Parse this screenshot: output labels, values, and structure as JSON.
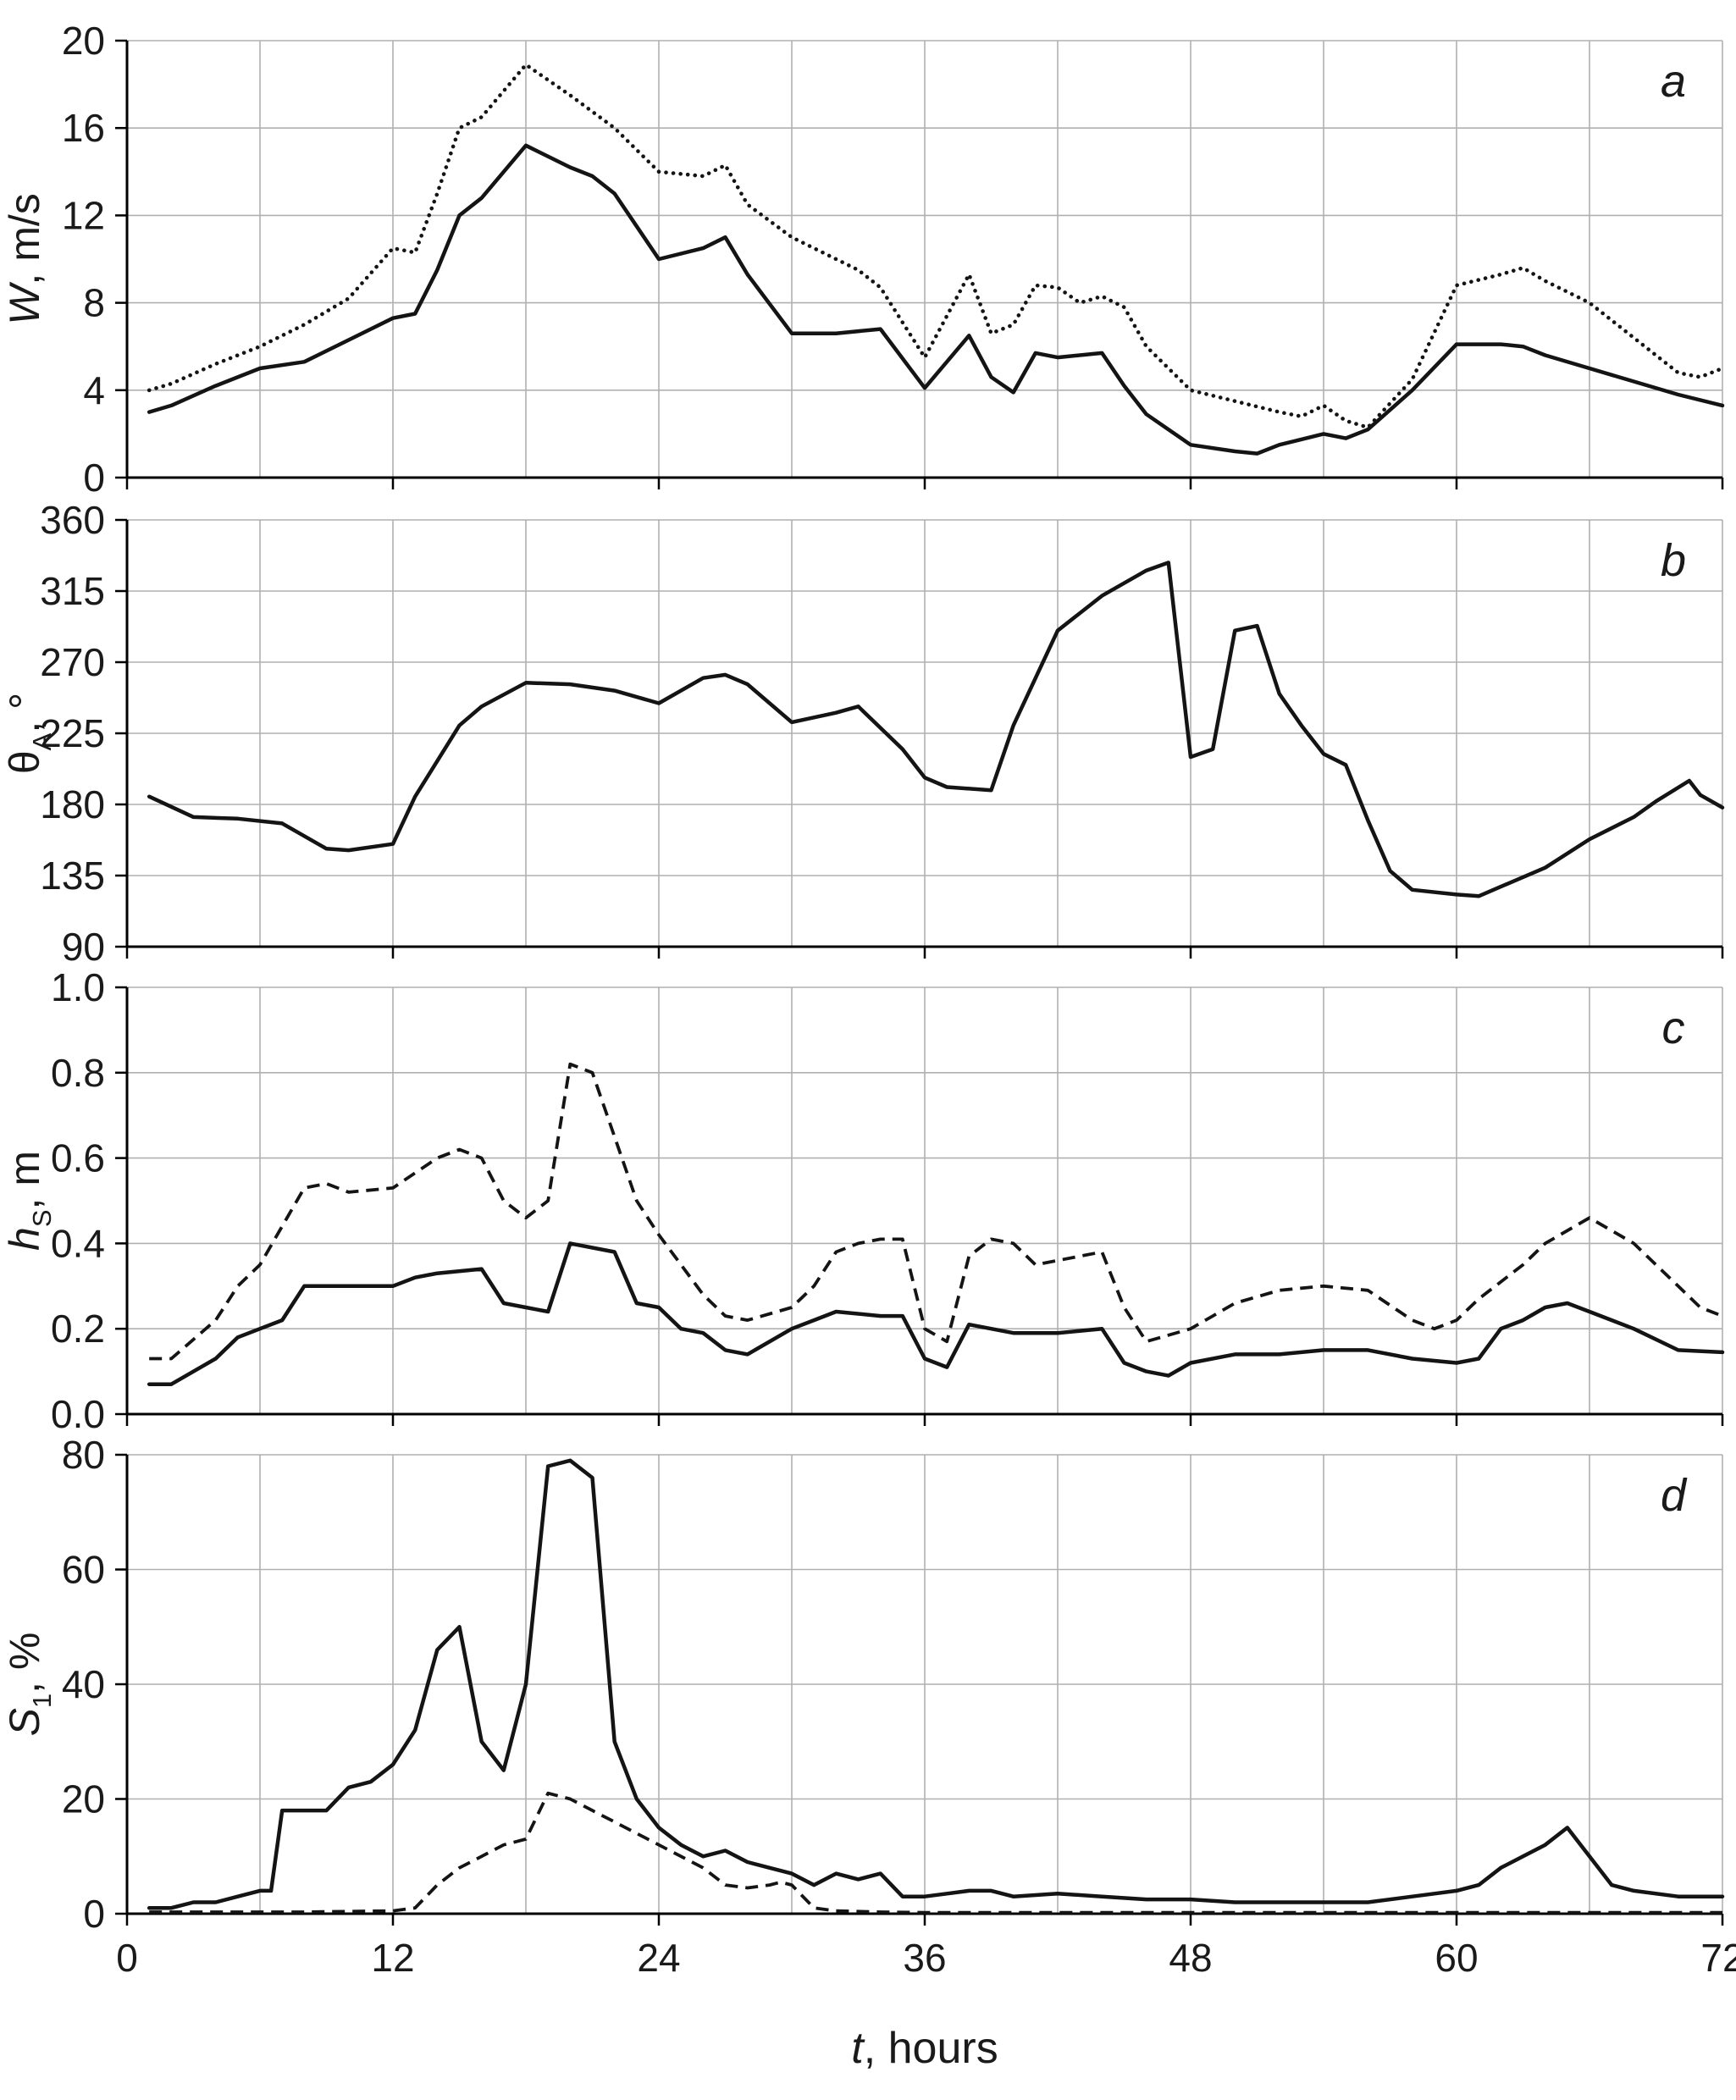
{
  "figure": {
    "background": "#ffffff",
    "line_color": "#141414",
    "grid_color": "#b0b0b0",
    "axis_color": "#000000",
    "text_color": "#1a1a1a"
  },
  "xaxis": {
    "min": 0,
    "max": 72,
    "grid_step": 6,
    "ticks": [
      {
        "v": 0,
        "label": "0"
      },
      {
        "v": 12,
        "label": "12"
      },
      {
        "v": 24,
        "label": "24"
      },
      {
        "v": 36,
        "label": "36"
      },
      {
        "v": 48,
        "label": "48"
      },
      {
        "v": 60,
        "label": "60"
      },
      {
        "v": 72,
        "label": "72"
      }
    ],
    "title_parts": [
      {
        "t": "t",
        "i": true
      },
      {
        "t": ", hours"
      }
    ]
  },
  "chart_data": [
    {
      "type": "line",
      "panel_label": "a",
      "ylabel_parts": [
        {
          "t": "W",
          "i": true
        },
        {
          "t": ", m/s"
        }
      ],
      "ylim": [
        0,
        20
      ],
      "yticks": [
        {
          "v": 0,
          "label": "0"
        },
        {
          "v": 4,
          "label": "4"
        },
        {
          "v": 8,
          "label": "8"
        },
        {
          "v": 12,
          "label": "12"
        },
        {
          "v": 16,
          "label": "16"
        },
        {
          "v": 20,
          "label": "20"
        }
      ],
      "series": [
        {
          "name": "wind-speed-solid",
          "style": "solid",
          "x": [
            1,
            2,
            4,
            6,
            8,
            10,
            12,
            13,
            14,
            15,
            16,
            18,
            20,
            21,
            22,
            24,
            26,
            27,
            28,
            30,
            32,
            34,
            36,
            38,
            39,
            40,
            41,
            42,
            44,
            45,
            46,
            48,
            50,
            51,
            52,
            54,
            55,
            56,
            58,
            60,
            62,
            63,
            64,
            66,
            68,
            70,
            72
          ],
          "y": [
            3.0,
            3.3,
            4.2,
            5.0,
            5.3,
            6.3,
            7.3,
            7.5,
            9.5,
            12.0,
            12.8,
            15.2,
            14.2,
            13.8,
            13.0,
            10.0,
            10.5,
            11.0,
            9.3,
            6.6,
            6.6,
            6.8,
            4.1,
            6.5,
            4.6,
            3.9,
            5.7,
            5.5,
            5.7,
            4.2,
            2.9,
            1.5,
            1.2,
            1.1,
            1.5,
            2.0,
            1.8,
            2.2,
            4.0,
            6.1,
            6.1,
            6.0,
            5.6,
            5.0,
            4.4,
            3.8,
            3.3
          ]
        },
        {
          "name": "wind-speed-dotted",
          "style": "dotted",
          "x": [
            1,
            2,
            4,
            6,
            8,
            10,
            12,
            13,
            14,
            15,
            16,
            18,
            20,
            22,
            23,
            24,
            26,
            27,
            28,
            30,
            32,
            33,
            34,
            36,
            38,
            39,
            40,
            41,
            42,
            43,
            44,
            45,
            46,
            48,
            50,
            52,
            53,
            54,
            55,
            56,
            58,
            60,
            62,
            63,
            64,
            66,
            68,
            70,
            71,
            72
          ],
          "y": [
            4.0,
            4.3,
            5.2,
            6.0,
            7.0,
            8.2,
            10.5,
            10.3,
            13.0,
            16.0,
            16.5,
            18.9,
            17.5,
            16.0,
            15.0,
            14.0,
            13.8,
            14.3,
            12.5,
            11.0,
            10.0,
            9.5,
            8.7,
            5.5,
            9.3,
            6.6,
            7.0,
            8.8,
            8.7,
            8.0,
            8.3,
            7.8,
            6.0,
            4.0,
            3.5,
            3.0,
            2.8,
            3.3,
            2.6,
            2.3,
            4.5,
            8.8,
            9.3,
            9.6,
            9.0,
            8.0,
            6.4,
            4.8,
            4.6,
            5.0
          ]
        }
      ]
    },
    {
      "type": "line",
      "panel_label": "b",
      "ylabel_parts": [
        {
          "t": "θ"
        },
        {
          "t": "A",
          "sub": true
        },
        {
          "t": ", °"
        }
      ],
      "ylim": [
        90,
        360
      ],
      "yticks": [
        {
          "v": 90,
          "label": "90"
        },
        {
          "v": 135,
          "label": "135"
        },
        {
          "v": 180,
          "label": "180"
        },
        {
          "v": 225,
          "label": "225"
        },
        {
          "v": 270,
          "label": "270"
        },
        {
          "v": 315,
          "label": "315"
        },
        {
          "v": 360,
          "label": "360"
        }
      ],
      "series": [
        {
          "name": "wind-direction-solid",
          "style": "solid",
          "x": [
            1,
            3,
            5,
            7,
            9,
            10,
            12,
            13,
            15,
            16,
            18,
            20,
            22,
            24,
            26,
            27,
            28,
            30,
            32,
            33,
            35,
            36,
            37,
            39,
            40,
            42,
            44,
            46,
            47,
            48,
            49,
            50,
            51,
            52,
            53,
            54,
            55,
            56,
            57,
            58,
            60,
            61,
            62,
            64,
            66,
            68,
            69,
            70.5,
            71,
            72
          ],
          "y": [
            185,
            172,
            171,
            168,
            152,
            151,
            155,
            185,
            230,
            242,
            257,
            256,
            252,
            244,
            260,
            262,
            256,
            232,
            238,
            242,
            215,
            197,
            191,
            189,
            230,
            290,
            312,
            328,
            333,
            210,
            215,
            290,
            293,
            250,
            230,
            212,
            205,
            170,
            138,
            126,
            123,
            122,
            128,
            140,
            158,
            172,
            182,
            195,
            186,
            178
          ]
        }
      ]
    },
    {
      "type": "line",
      "panel_label": "c",
      "ylabel_parts": [
        {
          "t": "h",
          "i": true
        },
        {
          "t": "S",
          "sub": true
        },
        {
          "t": ", m"
        }
      ],
      "ylim": [
        0,
        1.0
      ],
      "yticks": [
        {
          "v": 0,
          "label": "0.0"
        },
        {
          "v": 0.2,
          "label": "0.2"
        },
        {
          "v": 0.4,
          "label": "0.4"
        },
        {
          "v": 0.6,
          "label": "0.6"
        },
        {
          "v": 0.8,
          "label": "0.8"
        },
        {
          "v": 1.0,
          "label": "1.0"
        }
      ],
      "series": [
        {
          "name": "wave-height-solid",
          "style": "solid",
          "x": [
            1,
            2,
            4,
            5,
            6,
            7,
            8,
            10,
            12,
            13,
            14,
            16,
            17,
            18,
            19,
            20,
            22,
            23,
            24,
            25,
            26,
            27,
            28,
            30,
            31,
            32,
            34,
            35,
            36,
            37,
            38,
            40,
            42,
            44,
            45,
            46,
            47,
            48,
            50,
            52,
            54,
            56,
            58,
            60,
            61,
            62,
            63,
            64,
            65,
            66,
            68,
            70,
            72
          ],
          "y": [
            0.07,
            0.07,
            0.13,
            0.18,
            0.2,
            0.22,
            0.3,
            0.3,
            0.3,
            0.32,
            0.33,
            0.34,
            0.26,
            0.25,
            0.24,
            0.4,
            0.38,
            0.26,
            0.25,
            0.2,
            0.19,
            0.15,
            0.14,
            0.2,
            0.22,
            0.24,
            0.23,
            0.23,
            0.13,
            0.11,
            0.21,
            0.19,
            0.19,
            0.2,
            0.12,
            0.1,
            0.09,
            0.12,
            0.14,
            0.14,
            0.15,
            0.15,
            0.13,
            0.12,
            0.13,
            0.2,
            0.22,
            0.25,
            0.26,
            0.24,
            0.2,
            0.15,
            0.145
          ]
        },
        {
          "name": "wave-height-dashed",
          "style": "dashed",
          "x": [
            1,
            2,
            4,
            5,
            6,
            8,
            9,
            10,
            12,
            14,
            15,
            16,
            17,
            18,
            19,
            20,
            21,
            22,
            23,
            24,
            25,
            26,
            27,
            28,
            30,
            31,
            32,
            33,
            34,
            35,
            36,
            37,
            38,
            39,
            40,
            41,
            43,
            44,
            45,
            46,
            48,
            49,
            50,
            52,
            54,
            56,
            58,
            59,
            60,
            61,
            63,
            64,
            65,
            66,
            67,
            68,
            70,
            71,
            72
          ],
          "y": [
            0.13,
            0.13,
            0.22,
            0.3,
            0.35,
            0.53,
            0.54,
            0.52,
            0.53,
            0.6,
            0.62,
            0.6,
            0.5,
            0.46,
            0.5,
            0.82,
            0.8,
            0.65,
            0.5,
            0.42,
            0.35,
            0.28,
            0.23,
            0.22,
            0.25,
            0.3,
            0.38,
            0.4,
            0.41,
            0.41,
            0.2,
            0.17,
            0.37,
            0.41,
            0.4,
            0.35,
            0.37,
            0.38,
            0.25,
            0.17,
            0.2,
            0.23,
            0.26,
            0.29,
            0.3,
            0.29,
            0.22,
            0.2,
            0.22,
            0.27,
            0.35,
            0.4,
            0.43,
            0.46,
            0.43,
            0.4,
            0.3,
            0.25,
            0.23
          ]
        }
      ]
    },
    {
      "type": "line",
      "panel_label": "d",
      "ylabel_parts": [
        {
          "t": "S",
          "i": true
        },
        {
          "t": "1",
          "sub": true
        },
        {
          "t": ", %"
        }
      ],
      "ylim": [
        0,
        80
      ],
      "yticks": [
        {
          "v": 0,
          "label": "0"
        },
        {
          "v": 20,
          "label": "20"
        },
        {
          "v": 40,
          "label": "40"
        },
        {
          "v": 60,
          "label": "60"
        },
        {
          "v": 80,
          "label": "80"
        }
      ],
      "series": [
        {
          "name": "swell-fraction-solid",
          "style": "solid",
          "x": [
            1,
            2,
            3,
            4,
            5,
            6,
            6.5,
            7,
            8,
            9,
            10,
            11,
            12,
            13,
            14,
            15,
            16,
            17,
            18,
            19,
            20,
            21,
            22,
            23,
            24,
            25,
            26,
            27,
            28,
            29,
            30,
            31,
            32,
            33,
            34,
            35,
            36,
            37,
            38,
            39,
            40,
            42,
            44,
            46,
            48,
            50,
            52,
            54,
            56,
            58,
            59,
            60,
            61,
            62,
            63,
            64,
            65,
            66,
            67,
            68,
            70,
            72
          ],
          "y": [
            1,
            1,
            2,
            2,
            3,
            4,
            4,
            18,
            18,
            18,
            22,
            23,
            26,
            32,
            46,
            50,
            30,
            25,
            40,
            78,
            79,
            76,
            30,
            20,
            15,
            12,
            10,
            11,
            9,
            8,
            7,
            5,
            7,
            6,
            7,
            3,
            3,
            3.5,
            4,
            4,
            3,
            3.5,
            3,
            2.5,
            2.5,
            2,
            2,
            2,
            2,
            3,
            3.5,
            4,
            5,
            8,
            10,
            12,
            15,
            10,
            5,
            4,
            3,
            3
          ]
        },
        {
          "name": "swell-fraction-dashed",
          "style": "dashed",
          "x": [
            1,
            4,
            8,
            12,
            13,
            14,
            15,
            16,
            17,
            18,
            19,
            20,
            21,
            22,
            23,
            24,
            25,
            26,
            27,
            28,
            29,
            29.5,
            30,
            30.5,
            31,
            32,
            34,
            36,
            40,
            44,
            48,
            52,
            56,
            60,
            64,
            68,
            72
          ],
          "y": [
            0.3,
            0.3,
            0.3,
            0.5,
            1,
            5,
            8,
            10,
            12,
            13,
            21,
            20,
            18,
            16,
            14,
            12,
            10,
            8,
            5,
            4.5,
            5,
            5.5,
            5,
            3,
            1,
            0.5,
            0.3,
            0.2,
            0.2,
            0.2,
            0.2,
            0.2,
            0.2,
            0.2,
            0.2,
            0.2,
            0.2
          ]
        }
      ]
    }
  ]
}
